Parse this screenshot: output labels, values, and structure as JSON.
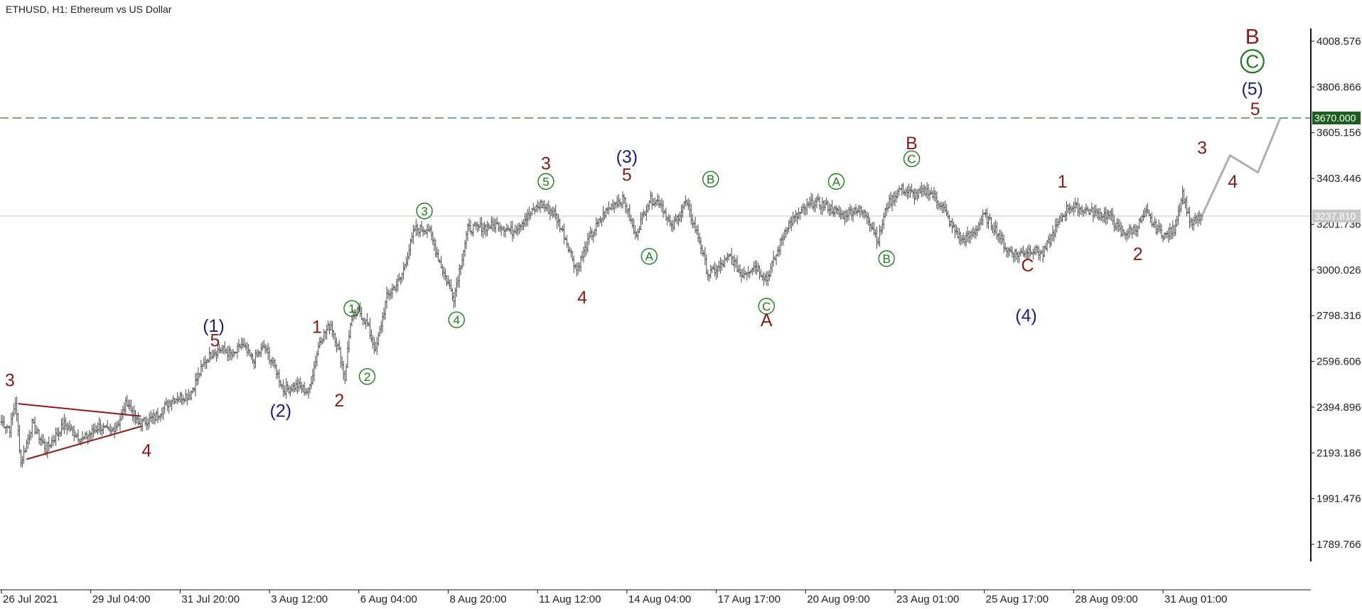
{
  "header": {
    "title": "ETHUSD, H1:  Ethereum vs US Dollar"
  },
  "colors": {
    "background": "#ffffff",
    "candles": "#4a4a4a",
    "wave_dark_red": "#8b1a1a",
    "wave_navy": "#1f1f7a",
    "wave_green": "#1e7a1e",
    "forecast": "#b0b0b0",
    "target_line": "#2e7d32",
    "target_tag_bg": "#1b5e20",
    "current_line": "#c8c8c8",
    "current_tag_bg": "#c8c8c8",
    "triangle": "#8b1a1a"
  },
  "chart_data": {
    "type": "line",
    "subtype": "ohlc-bars-with-elliott-wave-annotations",
    "symbol": "ETHUSD",
    "timeframe": "H1",
    "description": "Ethereum vs US Dollar",
    "ylim": [
      1700,
      4150
    ],
    "y_ticks": [
      "4008.576",
      "3806.866",
      "3605.156",
      "3403.446",
      "3201.736",
      "3000.026",
      "2798.316",
      "2596.606",
      "2394.896",
      "2193.186",
      "1991.476",
      "1789.766"
    ],
    "x_ticks": [
      "26 Jul 2021",
      "29 Jul 04:00",
      "31 Jul 20:00",
      "3 Aug 12:00",
      "6 Aug 04:00",
      "8 Aug 20:00",
      "11 Aug 12:00",
      "14 Aug 04:00",
      "17 Aug 17:00",
      "20 Aug 09:00",
      "23 Aug 01:00",
      "25 Aug 17:00",
      "28 Aug 09:00",
      "31 Aug 01:00"
    ],
    "x_units": "bar index from chart start (one unit per H1 bar); x_ticks placed every 64 bars",
    "x_tick_interval": 64,
    "x_max": 940,
    "price_path": [
      [
        0,
        2330
      ],
      [
        6,
        2300
      ],
      [
        10,
        2420
      ],
      [
        14,
        2150
      ],
      [
        22,
        2320
      ],
      [
        32,
        2210
      ],
      [
        45,
        2320
      ],
      [
        58,
        2250
      ],
      [
        70,
        2310
      ],
      [
        78,
        2280
      ],
      [
        84,
        2330
      ],
      [
        90,
        2420
      ],
      [
        98,
        2320
      ],
      [
        110,
        2350
      ],
      [
        122,
        2430
      ],
      [
        135,
        2450
      ],
      [
        146,
        2600
      ],
      [
        152,
        2640
      ],
      [
        158,
        2650
      ],
      [
        166,
        2620
      ],
      [
        172,
        2670
      ],
      [
        180,
        2600
      ],
      [
        188,
        2660
      ],
      [
        196,
        2570
      ],
      [
        202,
        2470
      ],
      [
        212,
        2490
      ],
      [
        220,
        2460
      ],
      [
        228,
        2690
      ],
      [
        236,
        2760
      ],
      [
        242,
        2640
      ],
      [
        246,
        2520
      ],
      [
        250,
        2770
      ],
      [
        256,
        2820
      ],
      [
        262,
        2760
      ],
      [
        268,
        2640
      ],
      [
        276,
        2880
      ],
      [
        286,
        2960
      ],
      [
        296,
        3180
      ],
      [
        306,
        3180
      ],
      [
        316,
        3000
      ],
      [
        324,
        2880
      ],
      [
        334,
        3180
      ],
      [
        346,
        3190
      ],
      [
        356,
        3200
      ],
      [
        366,
        3170
      ],
      [
        376,
        3230
      ],
      [
        386,
        3290
      ],
      [
        396,
        3250
      ],
      [
        404,
        3140
      ],
      [
        412,
        3000
      ],
      [
        422,
        3150
      ],
      [
        432,
        3250
      ],
      [
        440,
        3300
      ],
      [
        446,
        3310
      ],
      [
        454,
        3150
      ],
      [
        464,
        3310
      ],
      [
        472,
        3300
      ],
      [
        480,
        3180
      ],
      [
        490,
        3300
      ],
      [
        500,
        3130
      ],
      [
        506,
        2980
      ],
      [
        514,
        3010
      ],
      [
        522,
        3060
      ],
      [
        530,
        2980
      ],
      [
        540,
        3020
      ],
      [
        548,
        2960
      ],
      [
        556,
        3080
      ],
      [
        562,
        3190
      ],
      [
        572,
        3250
      ],
      [
        582,
        3300
      ],
      [
        592,
        3280
      ],
      [
        602,
        3240
      ],
      [
        612,
        3270
      ],
      [
        620,
        3240
      ],
      [
        628,
        3130
      ],
      [
        634,
        3280
      ],
      [
        644,
        3360
      ],
      [
        654,
        3330
      ],
      [
        664,
        3350
      ],
      [
        674,
        3280
      ],
      [
        680,
        3200
      ],
      [
        688,
        3130
      ],
      [
        696,
        3160
      ],
      [
        704,
        3240
      ],
      [
        712,
        3180
      ],
      [
        720,
        3090
      ],
      [
        728,
        3070
      ],
      [
        738,
        3090
      ],
      [
        746,
        3070
      ],
      [
        754,
        3170
      ],
      [
        764,
        3280
      ],
      [
        774,
        3270
      ],
      [
        784,
        3250
      ],
      [
        794,
        3240
      ],
      [
        802,
        3160
      ],
      [
        812,
        3180
      ],
      [
        820,
        3250
      ],
      [
        826,
        3190
      ],
      [
        834,
        3150
      ],
      [
        840,
        3180
      ],
      [
        846,
        3340
      ],
      [
        852,
        3200
      ],
      [
        860,
        3240
      ]
    ],
    "current_price": "3237.810",
    "target_price": "3670.000",
    "forecast_path": [
      [
        860,
        3240
      ],
      [
        880,
        3505
      ],
      [
        900,
        3430
      ],
      [
        916,
        3670
      ]
    ],
    "triangle": {
      "upper": [
        [
          12,
          2410
        ],
        [
          100,
          2355
        ]
      ],
      "lower": [
        [
          18,
          2165
        ],
        [
          100,
          2310
        ]
      ]
    },
    "wave_labels": [
      {
        "text": "3",
        "style": "dark_red",
        "x": 6,
        "y": 2515
      },
      {
        "text": "4",
        "style": "dark_red",
        "x": 104,
        "y": 2205
      },
      {
        "text": "(1)",
        "style": "navy",
        "x": 152,
        "y": 2755
      },
      {
        "text": "5",
        "style": "dark_red",
        "x": 153,
        "y": 2690
      },
      {
        "text": "(2)",
        "style": "navy",
        "x": 200,
        "y": 2380
      },
      {
        "text": "1",
        "style": "dark_red",
        "x": 226,
        "y": 2750
      },
      {
        "text": "2",
        "style": "dark_red",
        "x": 242,
        "y": 2425
      },
      {
        "text": "1",
        "style": "green_circle",
        "x": 251,
        "y": 2830
      },
      {
        "text": "2",
        "style": "green_circle",
        "x": 262,
        "y": 2530
      },
      {
        "text": "3",
        "style": "green_circle",
        "x": 303,
        "y": 3260
      },
      {
        "text": "4",
        "style": "green_circle",
        "x": 326,
        "y": 2780
      },
      {
        "text": "3",
        "style": "dark_red",
        "x": 390,
        "y": 3470
      },
      {
        "text": "5",
        "style": "green_circle",
        "x": 390,
        "y": 3390
      },
      {
        "text": "4",
        "style": "dark_red",
        "x": 416,
        "y": 2880
      },
      {
        "text": "(3)",
        "style": "navy",
        "x": 448,
        "y": 3500
      },
      {
        "text": "5",
        "style": "dark_red",
        "x": 448,
        "y": 3420
      },
      {
        "text": "A",
        "style": "green_circle",
        "x": 464,
        "y": 3060
      },
      {
        "text": "B",
        "style": "green_circle",
        "x": 508,
        "y": 3400
      },
      {
        "text": "C",
        "style": "green_circle",
        "x": 548,
        "y": 2840
      },
      {
        "text": "A",
        "style": "dark_red",
        "x": 548,
        "y": 2780
      },
      {
        "text": "A",
        "style": "green_circle",
        "x": 598,
        "y": 3390
      },
      {
        "text": "B",
        "style": "green_circle",
        "x": 634,
        "y": 3050
      },
      {
        "text": "B",
        "style": "dark_red",
        "x": 652,
        "y": 3560
      },
      {
        "text": "C",
        "style": "green_circle",
        "x": 652,
        "y": 3490
      },
      {
        "text": "C",
        "style": "dark_red",
        "x": 735,
        "y": 3020
      },
      {
        "text": "(4)",
        "style": "navy",
        "x": 734,
        "y": 2800
      },
      {
        "text": "1",
        "style": "dark_red",
        "x": 760,
        "y": 3390
      },
      {
        "text": "2",
        "style": "dark_red",
        "x": 814,
        "y": 3070
      },
      {
        "text": "3",
        "style": "dark_red",
        "x": 860,
        "y": 3540
      },
      {
        "text": "4",
        "style": "dark_red",
        "x": 882,
        "y": 3390
      },
      {
        "text": "5",
        "style": "dark_red",
        "x": 898,
        "y": 3710
      },
      {
        "text": "(5)",
        "style": "navy",
        "x": 896,
        "y": 3800
      },
      {
        "text": "C",
        "style": "green_circle_large",
        "x": 896,
        "y": 3920
      },
      {
        "text": "B",
        "style": "dark_red_large",
        "x": 896,
        "y": 4030
      }
    ]
  }
}
